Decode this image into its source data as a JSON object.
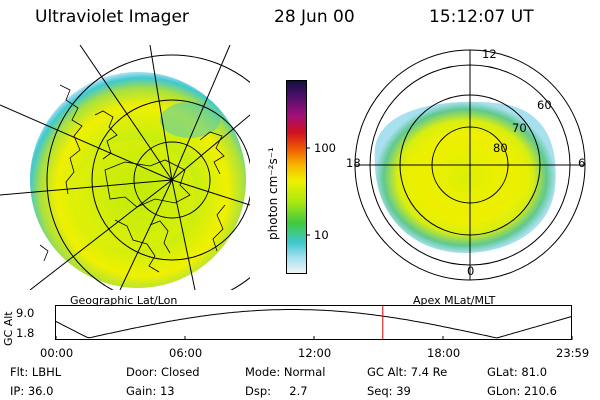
{
  "header": {
    "instrument": "Ultraviolet Imager",
    "date": "28 Jun 00",
    "time": "15:12:07 UT"
  },
  "colorbar": {
    "unit_label": "photon cm⁻²s⁻¹",
    "ticks": [
      "100",
      "10"
    ],
    "colors": [
      "#101040",
      "#4a0f6a",
      "#a0107a",
      "#d01020",
      "#f06000",
      "#f8b800",
      "#f0f000",
      "#a8e810",
      "#40c840",
      "#40c8d0",
      "#a8e0f0",
      "#f4f4f4"
    ]
  },
  "left_map": {
    "caption": "Geographic Lat/Lon"
  },
  "right_map": {
    "caption": "Apex  MLat/MLT",
    "mlt_labels": {
      "top": "12",
      "left": "18",
      "right": "6",
      "bottom": "0"
    },
    "lat_labels": [
      "60",
      "70",
      "80"
    ]
  },
  "altitude_plot": {
    "ylabel": "GC Alt",
    "yticks": [
      "9.0",
      "1.8"
    ],
    "xticks": [
      "00:00",
      "06:00",
      "12:00",
      "18:00",
      "23:59"
    ],
    "current_time_hours": 15.2,
    "curve_color": "#000000",
    "marker_color": "#d00000"
  },
  "status": {
    "row1": [
      "Flt: LBHL",
      "Door: Closed",
      "Mode: Normal",
      "GC Alt: 7.4 Re",
      "GLat:  81.0"
    ],
    "row2": [
      "IP: 36.0",
      "Gain: 13",
      "Dsp:     2.7",
      "Seq: 39",
      "GLon: 210.6"
    ]
  }
}
